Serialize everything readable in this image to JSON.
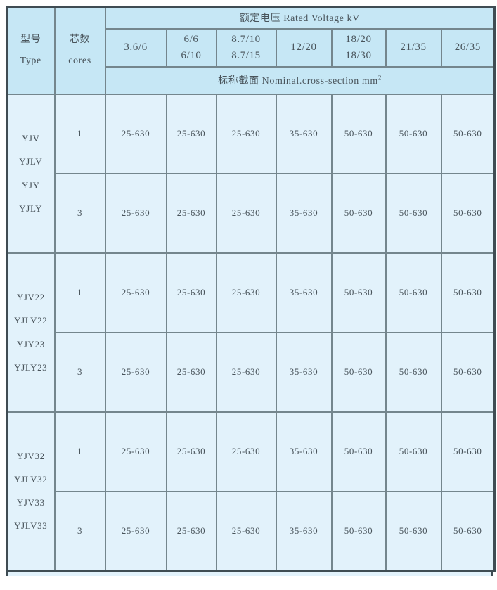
{
  "colors": {
    "header_cell_bg": "#c6e7f5",
    "body_cell_bg": "#e2f2fb",
    "inner_border": "#74868d",
    "outer_border": "#3f4c53",
    "text": "#49545b"
  },
  "table": {
    "header": {
      "type_label": "型号\nType",
      "cores_label": "芯数\ncores",
      "rated_voltage_label": "额定电压 Rated Voltage kV",
      "voltage_columns": [
        "3.6/6",
        "6/6\n6/10",
        "8.7/10\n8.7/15",
        "12/20",
        "18/20\n18/30",
        "21/35",
        "26/35"
      ],
      "cross_section_label": "标称截面 Nominal.cross-section mm",
      "cross_section_sup": "2"
    },
    "groups": [
      {
        "types": "YJV\nYJLV\nYJY\nYJLY",
        "rows": [
          {
            "cores": "1",
            "values": [
              "25-630",
              "25-630",
              "25-630",
              "35-630",
              "50-630",
              "50-630",
              "50-630"
            ]
          },
          {
            "cores": "3",
            "values": [
              "25-630",
              "25-630",
              "25-630",
              "35-630",
              "50-630",
              "50-630",
              "50-630"
            ]
          }
        ]
      },
      {
        "types": "YJV22\nYJLV22\nYJY23\nYJLY23",
        "rows": [
          {
            "cores": "1",
            "values": [
              "25-630",
              "25-630",
              "25-630",
              "35-630",
              "50-630",
              "50-630",
              "50-630"
            ]
          },
          {
            "cores": "3",
            "values": [
              "25-630",
              "25-630",
              "25-630",
              "35-630",
              "50-630",
              "50-630",
              "50-630"
            ]
          }
        ]
      },
      {
        "types": "YJV32\nYJLV32\nYJV33\nYJLV33",
        "rows": [
          {
            "cores": "1",
            "values": [
              "25-630",
              "25-630",
              "25-630",
              "35-630",
              "50-630",
              "50-630",
              "50-630"
            ]
          },
          {
            "cores": "3",
            "values": [
              "25-630",
              "25-630",
              "25-630",
              "35-630",
              "50-630",
              "50-630",
              "50-630"
            ]
          }
        ]
      }
    ]
  }
}
